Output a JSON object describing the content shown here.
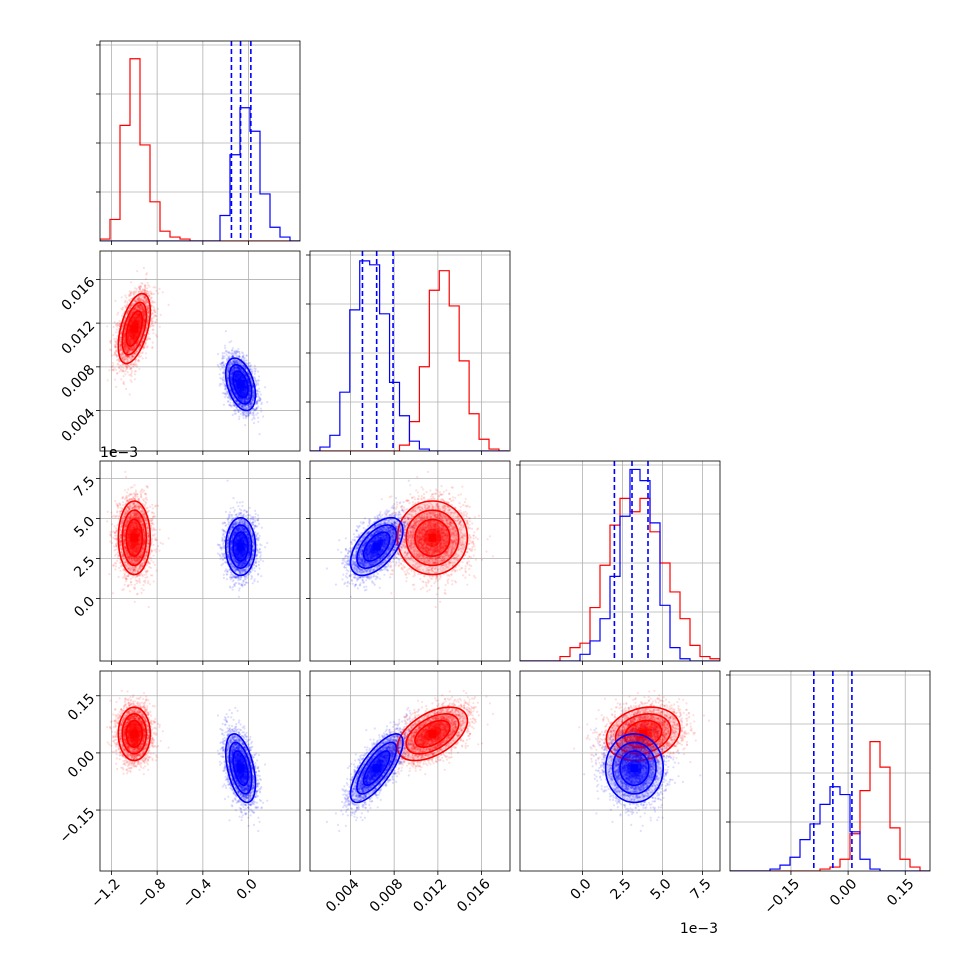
{
  "chart_data": {
    "type": "corner",
    "series": [
      {
        "name": "",
        "color": "#ff0000"
      },
      {
        "name": "",
        "color": "#0000ff"
      }
    ],
    "parameters": [
      {
        "range": [
          -1.3,
          0.45
        ],
        "ticks": [
          -1.2,
          -0.8,
          -0.4,
          0.0
        ],
        "tick_labels": [
          "−1.2",
          "−0.8",
          "−0.4",
          "0.0"
        ],
        "offset_label": ""
      },
      {
        "range": [
          0.0003,
          0.0186
        ],
        "ticks": [
          0.004,
          0.008,
          0.012,
          0.016
        ],
        "tick_labels": [
          "0.004",
          "0.008",
          "0.012",
          "0.016"
        ],
        "offset_label": ""
      },
      {
        "range": [
          -3.9,
          8.6
        ],
        "ticks": [
          0.0,
          2.5,
          5.0,
          7.5
        ],
        "tick_labels": [
          "0.0",
          "2.5",
          "5.0",
          "7.5"
        ],
        "offset_label": "1e−3"
      },
      {
        "range": [
          -0.31,
          0.215
        ],
        "ticks": [
          -0.15,
          0.0,
          0.15
        ],
        "tick_labels": [
          "−0.15",
          "0.00",
          "0.15"
        ],
        "offset_label": ""
      }
    ],
    "bottom_offset_label": "1e−3",
    "histograms": [
      {
        "edges": [
          -1.3,
          -1.2125,
          -1.125,
          -1.0375,
          -0.95,
          -0.8625,
          -0.775,
          -0.6875,
          -0.6,
          -0.5125,
          -0.425,
          -0.3375,
          -0.25,
          -0.1625,
          -0.075,
          0.0125,
          0.1,
          0.1875,
          0.275,
          0.3625,
          0.45
        ],
        "counts": [
          [
            1,
            11,
            59,
            93,
            49,
            20,
            5,
            2,
            1,
            0,
            0,
            0,
            0,
            0,
            0,
            0,
            0,
            0,
            0,
            0
          ],
          [
            0,
            0,
            0,
            0,
            0,
            0,
            0,
            0,
            0,
            0,
            0,
            0,
            13,
            44,
            68,
            56,
            24,
            7,
            2,
            0
          ]
        ],
        "quantiles": [
          -0.15,
          -0.07,
          0.02
        ],
        "ymax": 100
      },
      {
        "edges": [
          0.0003,
          0.00121,
          0.00212,
          0.00303,
          0.00394,
          0.00485,
          0.00576,
          0.00667,
          0.00758,
          0.00849,
          0.0094,
          0.01031,
          0.01122,
          0.01213,
          0.01304,
          0.01395,
          0.01486,
          0.01577,
          0.01668,
          0.01759,
          0.0185
        ],
        "counts": [
          [
            0,
            0,
            0,
            0,
            0,
            0,
            0,
            0,
            0,
            3,
            15,
            43,
            82,
            92,
            74,
            46,
            19,
            6,
            1,
            0
          ],
          [
            0,
            2,
            8,
            30,
            72,
            97,
            95,
            70,
            35,
            18,
            5,
            1,
            0,
            0,
            0,
            0,
            0,
            0,
            0,
            0
          ]
        ],
        "quantiles": [
          0.0051,
          0.0064,
          0.0079
        ],
        "ymax": 100
      },
      {
        "edges": [
          -3.9,
          -3.275,
          -2.65,
          -2.025,
          -1.4,
          -0.775,
          -0.15,
          0.475,
          1.1,
          1.725,
          2.35,
          2.975,
          3.6,
          4.225,
          4.85,
          5.475,
          6.1,
          6.725,
          7.35,
          7.975,
          8.6
        ],
        "counts": [
          [
            0,
            0,
            0,
            0,
            2,
            6,
            8,
            24,
            43,
            61,
            73,
            67,
            73,
            58,
            44,
            31,
            19,
            7,
            2,
            1
          ],
          [
            0,
            0,
            0,
            0,
            0,
            0,
            3,
            9,
            19,
            38,
            65,
            86,
            81,
            62,
            25,
            6,
            1,
            0,
            0,
            0
          ]
        ],
        "quantiles": [
          2.0,
          3.1,
          4.1
        ],
        "ymax": 88
      },
      {
        "edges": [
          -0.31,
          -0.28375,
          -0.2575,
          -0.23125,
          -0.205,
          -0.17875,
          -0.1525,
          -0.12625,
          -0.1,
          -0.07375,
          -0.0475,
          -0.02125,
          0.005,
          0.03125,
          0.0575,
          0.08375,
          0.11,
          0.13625,
          0.1625,
          0.18875,
          0.215
        ],
        "counts": [
          [
            0,
            0,
            0,
            0,
            0,
            0,
            0,
            0,
            0,
            1,
            2,
            6,
            19,
            41,
            66,
            53,
            22,
            6,
            2,
            0
          ],
          [
            0,
            0,
            0,
            0,
            1,
            3,
            7,
            16,
            24,
            34,
            43,
            39,
            20,
            6,
            1,
            0,
            0,
            0,
            0,
            0
          ]
        ],
        "quantiles": [
          -0.09,
          -0.04,
          0.01
        ],
        "ymax": 100
      }
    ],
    "clouds": [
      {
        "name": "red",
        "color": "#ff0000",
        "n": 3000,
        "mean": [
          -1.0,
          0.0115,
          3.8,
          0.05
        ],
        "std": [
          0.07,
          0.0016,
          1.15,
          0.035
        ],
        "corr": [
          [
            1,
            0.5,
            0,
            0
          ],
          [
            0.5,
            1,
            0,
            0.5
          ],
          [
            0,
            0,
            1,
            0.2
          ],
          [
            0,
            0.5,
            0.2,
            1
          ]
        ]
      },
      {
        "name": "blue",
        "color": "#0000ff",
        "n": 3000,
        "mean": [
          -0.07,
          0.0064,
          3.25,
          -0.04
        ],
        "std": [
          0.065,
          0.0012,
          0.9,
          0.045
        ],
        "corr": [
          [
            1,
            -0.4,
            0,
            -0.45
          ],
          [
            -0.4,
            1,
            0.55,
            0.75
          ],
          [
            0,
            0.55,
            1,
            0
          ],
          [
            -0.45,
            0.75,
            0,
            1
          ]
        ]
      }
    ],
    "contour_levels_sigma": [
      0.5,
      1.0,
      1.5,
      2.0
    ],
    "grid": true
  }
}
